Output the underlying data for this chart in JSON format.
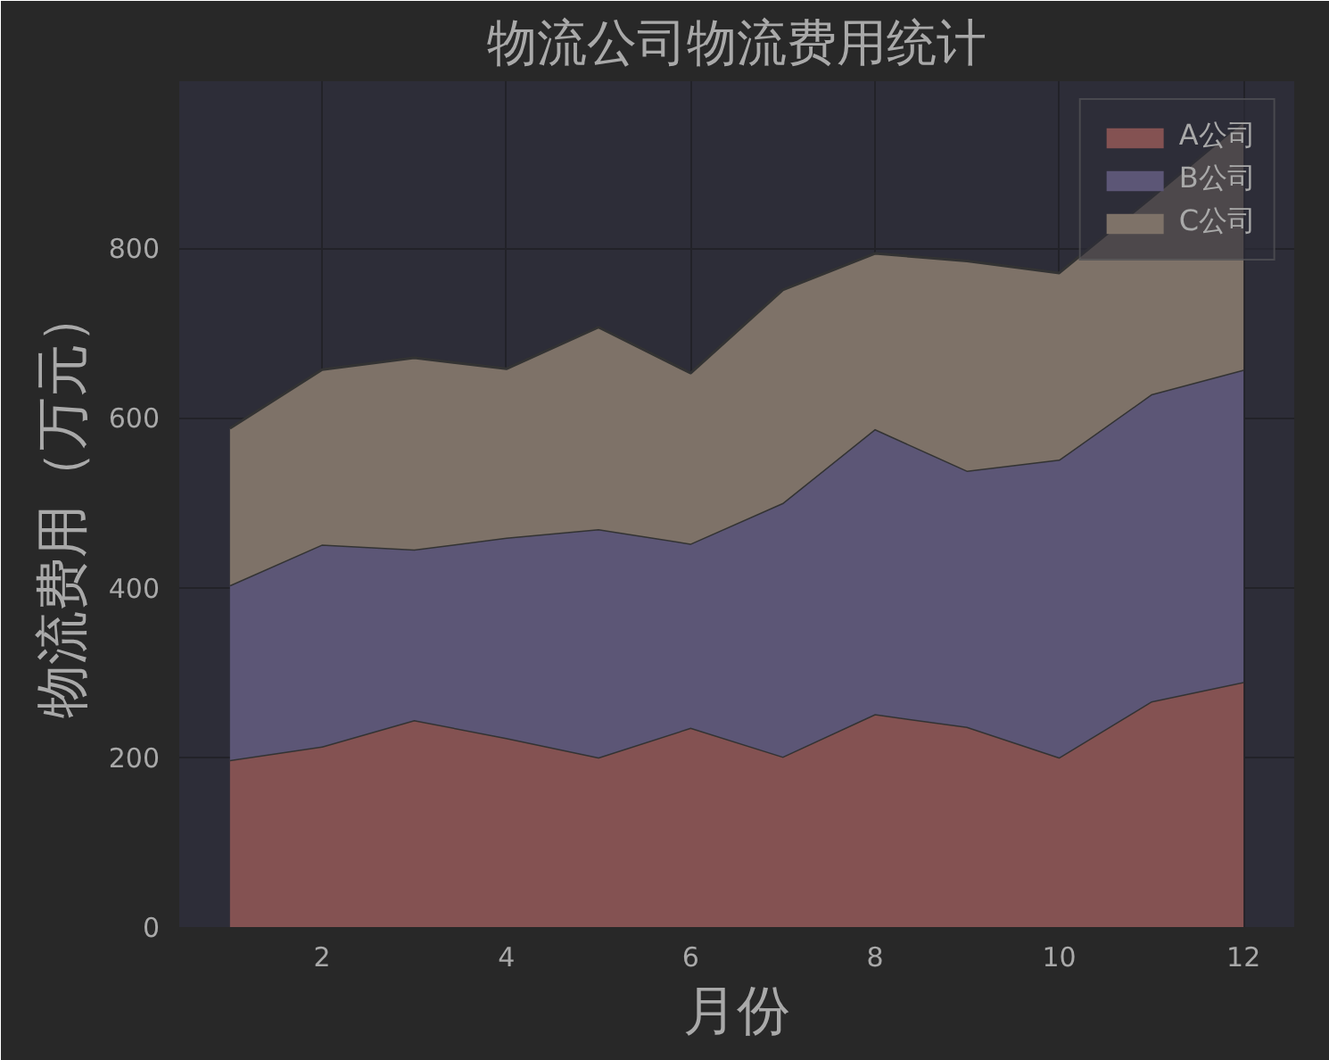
{
  "chart_data": {
    "type": "area",
    "stacked": true,
    "title": "物流公司物流费用统计",
    "xlabel": "月份",
    "ylabel": "物流费用（万元）",
    "x": [
      1,
      2,
      3,
      4,
      5,
      6,
      7,
      8,
      9,
      10,
      11,
      12
    ],
    "series": [
      {
        "name": "A公司",
        "color": "#845252",
        "values": [
          197,
          213,
          244,
          223,
          200,
          235,
          201,
          251,
          236,
          200,
          266,
          289
        ]
      },
      {
        "name": "B公司",
        "color": "#5c5676",
        "values": [
          206,
          238,
          201,
          236,
          269,
          217,
          299,
          336,
          302,
          351,
          362,
          368
        ]
      },
      {
        "name": "C公司",
        "color": "#7e7268",
        "values": [
          185,
          206,
          226,
          199,
          238,
          201,
          251,
          207,
          247,
          220,
          232,
          293
        ]
      }
    ],
    "xlim": [
      0.45,
      12.55
    ],
    "ylim": [
      0,
      997
    ],
    "xticks": [
      2,
      4,
      6,
      8,
      10,
      12
    ],
    "yticks": [
      0,
      200,
      400,
      600,
      800
    ],
    "grid": true,
    "legend": "top right"
  }
}
